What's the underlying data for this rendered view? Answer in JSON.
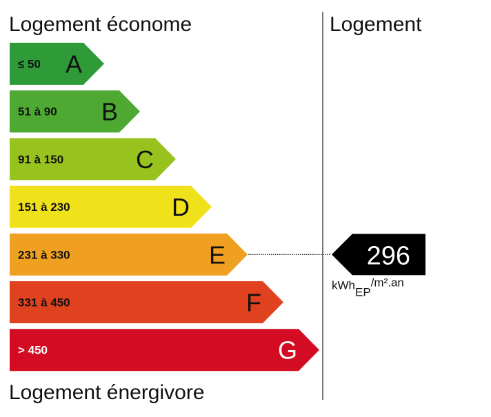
{
  "headings": {
    "top": "Logement économe",
    "right": "Logement",
    "bottom": "Logement énergivore"
  },
  "chart_data": {
    "type": "bar",
    "categories": [
      "A",
      "B",
      "C",
      "D",
      "E",
      "F",
      "G"
    ],
    "ranges": [
      "≤ 50",
      "51 à 90",
      "91 à 150",
      "151 à 230",
      "231 à 330",
      "331 à 450",
      "> 450"
    ],
    "colors": [
      "#2e9b38",
      "#4ea933",
      "#98c21d",
      "#efe21b",
      "#f0a020",
      "#e0421f",
      "#d30c24"
    ],
    "text_colors": [
      "#111111",
      "#111111",
      "#111111",
      "#111111",
      "#111111",
      "#111111",
      "#ffffff"
    ],
    "value": 296,
    "value_class": "E",
    "unit": {
      "base": "kWh",
      "sub": "EP",
      "suffix": "/m².an"
    }
  }
}
